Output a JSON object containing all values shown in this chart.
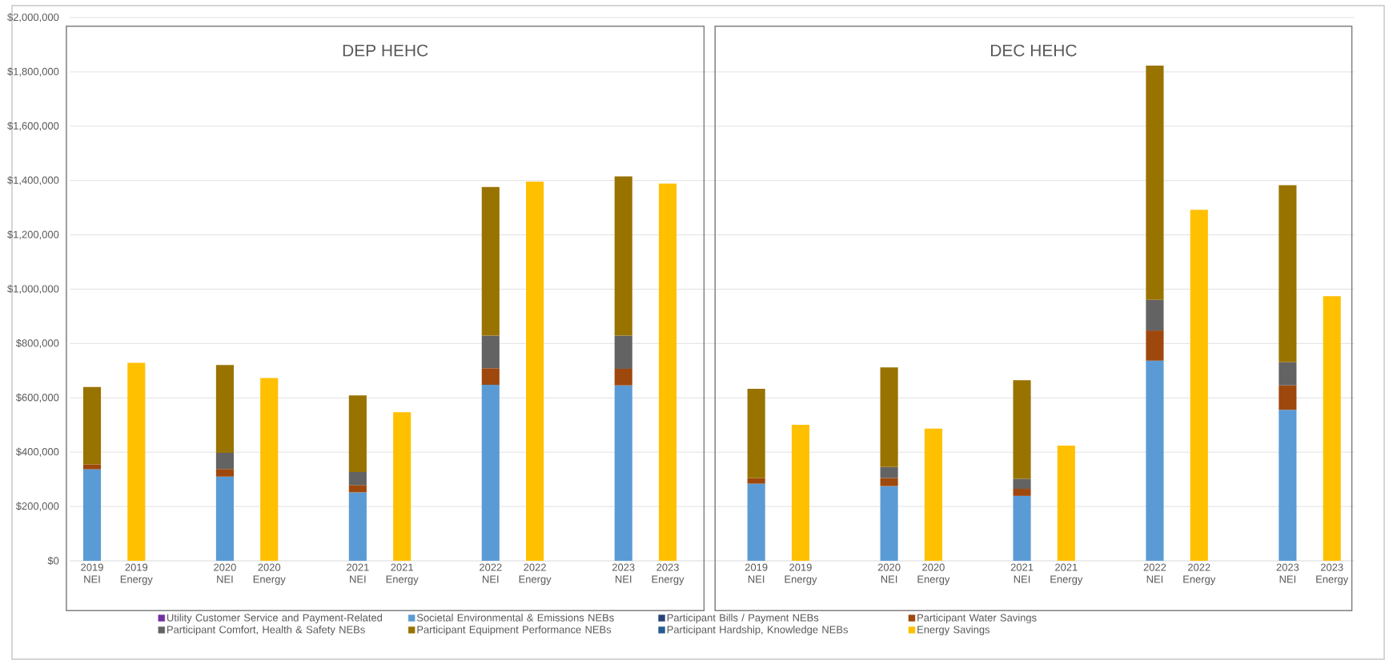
{
  "chart_data": {
    "type": "bar",
    "stacked": true,
    "categories": [
      "2019 NEI",
      "2019 Energy",
      null,
      "2020 NEI",
      "2020 Energy",
      null,
      "2021 NEI",
      "2021 Energy",
      null,
      "2022 NEI",
      "2022 Energy",
      null,
      "2023 NEI",
      "2023 Energy",
      null,
      "2019 NEI",
      "2019 Energy",
      null,
      "2020 NEI",
      "2020 Energy",
      null,
      "2021 NEI",
      "2021 Energy",
      null,
      "2022 NEI",
      "2022 Energy",
      null,
      "2023 NEI",
      "2023 Energy"
    ],
    "series": [
      {
        "name": "Utility Customer Service and Payment-Related",
        "color": "#7030a0",
        "values": [
          null,
          null,
          null,
          null,
          null,
          null,
          null,
          null,
          null,
          null,
          null,
          null,
          null,
          null,
          null,
          null,
          null,
          null,
          null,
          null,
          null,
          null,
          null,
          null,
          null,
          null,
          null,
          null,
          null
        ]
      },
      {
        "name": "Societal Environmental & Emissions NEBs",
        "color": "#5b9bd5",
        "values": [
          337000,
          null,
          null,
          310000,
          null,
          null,
          252000,
          null,
          null,
          648000,
          null,
          null,
          646000,
          null,
          null,
          284000,
          null,
          null,
          275000,
          null,
          null,
          239000,
          null,
          null,
          737000,
          null,
          null,
          556000,
          null
        ]
      },
      {
        "name": "Participant Bills / Payment NEBs",
        "color": "#264478",
        "values": [
          null,
          null,
          null,
          null,
          null,
          null,
          null,
          null,
          null,
          null,
          null,
          null,
          null,
          null,
          null,
          null,
          null,
          null,
          null,
          null,
          null,
          null,
          null,
          null,
          null,
          null,
          null,
          null,
          null
        ]
      },
      {
        "name": "Participant Water Savings",
        "color": "#9e480e",
        "values": [
          18000,
          null,
          null,
          28000,
          null,
          null,
          27000,
          null,
          null,
          61000,
          null,
          null,
          61000,
          null,
          null,
          20000,
          null,
          null,
          30000,
          null,
          null,
          26000,
          null,
          null,
          111000,
          null,
          null,
          90000,
          null
        ]
      },
      {
        "name": "Participant Comfort, Health & Safety NEBs",
        "color": "#636363",
        "values": [
          null,
          null,
          null,
          60000,
          null,
          null,
          48000,
          null,
          null,
          120000,
          null,
          null,
          122000,
          null,
          null,
          null,
          null,
          null,
          40000,
          null,
          null,
          37000,
          null,
          null,
          113000,
          null,
          null,
          85000,
          null
        ]
      },
      {
        "name": "Participant Equipment Performance NEBs",
        "color": "#997300",
        "values": [
          285000,
          null,
          null,
          323000,
          null,
          null,
          282000,
          null,
          null,
          547000,
          null,
          null,
          586000,
          null,
          null,
          329000,
          null,
          null,
          367000,
          null,
          null,
          363000,
          null,
          null,
          862000,
          null,
          null,
          652000,
          null
        ]
      },
      {
        "name": "Participant Hardship, Knowledge NEBs",
        "color": "#255e91",
        "values": [
          null,
          null,
          null,
          null,
          null,
          null,
          null,
          null,
          null,
          null,
          null,
          null,
          null,
          null,
          null,
          null,
          null,
          null,
          null,
          null,
          null,
          null,
          null,
          null,
          null,
          null,
          null,
          null,
          null
        ]
      },
      {
        "name": "Energy Savings",
        "color": "#ffc000",
        "values": [
          null,
          729000,
          null,
          null,
          673000,
          null,
          null,
          547000,
          null,
          null,
          1396000,
          null,
          null,
          1389000,
          null,
          null,
          501000,
          null,
          null,
          487000,
          null,
          null,
          424000,
          null,
          null,
          1292000,
          null,
          null,
          974000
        ]
      }
    ],
    "ylim": [
      0,
      2000000
    ],
    "yticks": [
      {
        "value": 0,
        "label": "$0"
      },
      {
        "value": 200000,
        "label": "$200,000"
      },
      {
        "value": 400000,
        "label": "$400,000"
      },
      {
        "value": 600000,
        "label": "$600,000"
      },
      {
        "value": 800000,
        "label": "$800,000"
      },
      {
        "value": 1000000,
        "label": "$1,000,000"
      },
      {
        "value": 1200000,
        "label": "$1,200,000"
      },
      {
        "value": 1400000,
        "label": "$1,400,000"
      },
      {
        "value": 1600000,
        "label": "$1,600,000"
      },
      {
        "value": 1800000,
        "label": "$1,800,000"
      },
      {
        "value": 2000000,
        "label": "$2,000,000"
      }
    ],
    "grid": "y",
    "legend": "bottom",
    "annotations": [
      "DEP HEHC",
      "DEC HEHC"
    ]
  }
}
